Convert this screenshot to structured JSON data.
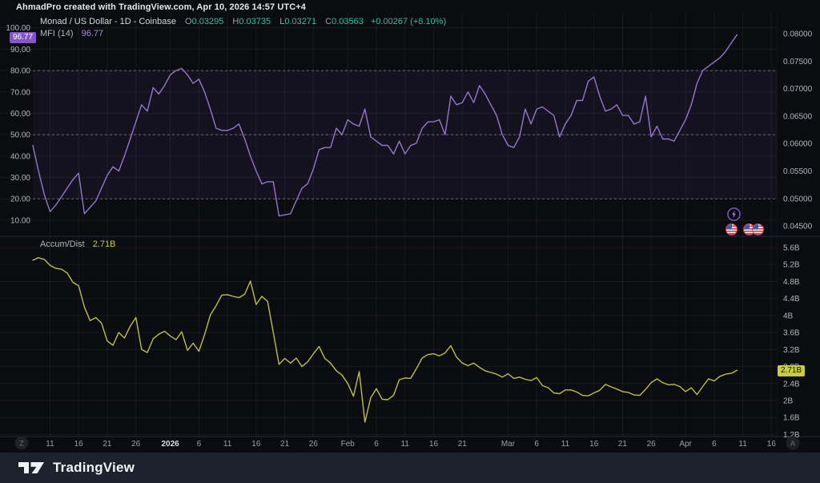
{
  "attribution": "AhmadPro created with TradingView.com, Apr 10, 2026 14:57 UTC+4",
  "header": {
    "symbol_title": "Monad / US Dollar - 1D - Coinbase",
    "ohlc": [
      {
        "k": "O",
        "v": "0.03295"
      },
      {
        "k": "H",
        "v": "0.03735"
      },
      {
        "k": "L",
        "v": "0.03271"
      },
      {
        "k": "C",
        "v": "0.03563"
      }
    ],
    "change": "+0.00267 (+8.10%)",
    "mfi_label": "MFI (14)",
    "mfi_value": "96.77",
    "accdist_label": "Accum/Dist",
    "accdist_value": "2.71B"
  },
  "badges": {
    "mfi": "96.77",
    "accdist": "2.71B"
  },
  "axes": {
    "mfi_left": [
      "100.00",
      "90.00",
      "80.00",
      "70.00",
      "60.00",
      "50.00",
      "40.00",
      "30.00",
      "20.00",
      "10.00"
    ],
    "price_right": [
      "0.08000",
      "0.07500",
      "0.07000",
      "0.06500",
      "0.06000",
      "0.05500",
      "0.05000",
      "0.04500"
    ],
    "accdist_right": [
      "5.6B",
      "5.2B",
      "4.8B",
      "4.4B",
      "4B",
      "3.6B",
      "3.2B",
      "2.8B",
      "2.4B",
      "2B",
      "1.6B",
      "1.2B"
    ],
    "time": [
      {
        "label": "11",
        "i": 3
      },
      {
        "label": "16",
        "i": 8
      },
      {
        "label": "21",
        "i": 13
      },
      {
        "label": "26",
        "i": 18
      },
      {
        "label": "2026",
        "i": 24,
        "bold": true
      },
      {
        "label": "6",
        "i": 29
      },
      {
        "label": "11",
        "i": 34
      },
      {
        "label": "16",
        "i": 39
      },
      {
        "label": "21",
        "i": 44
      },
      {
        "label": "26",
        "i": 49
      },
      {
        "label": "Feb",
        "i": 55
      },
      {
        "label": "6",
        "i": 60
      },
      {
        "label": "11",
        "i": 65
      },
      {
        "label": "16",
        "i": 70
      },
      {
        "label": "21",
        "i": 75
      },
      {
        "label": "Mar",
        "i": 83
      },
      {
        "label": "6",
        "i": 88
      },
      {
        "label": "11",
        "i": 93
      },
      {
        "label": "16",
        "i": 98
      },
      {
        "label": "21",
        "i": 103
      },
      {
        "label": "26",
        "i": 108
      },
      {
        "label": "Apr",
        "i": 114
      },
      {
        "label": "6",
        "i": 119
      },
      {
        "label": "11",
        "i": 124
      },
      {
        "label": "16",
        "i": 129
      }
    ],
    "time_left_button": "Z",
    "time_right_button": "A"
  },
  "chart_data": [
    {
      "type": "line",
      "title": "MFI (14)",
      "pane": "top",
      "symbol": "Monad / US Dollar",
      "interval": "1D",
      "exchange": "Coinbase",
      "x_start": "2025-12-08",
      "x_end": "2026-04-10",
      "ylim": [
        0,
        105
      ],
      "levels": {
        "overbought": 80,
        "middle": 50,
        "oversold": 20
      },
      "last_value": 96.77,
      "values": [
        45,
        33,
        22,
        14,
        17,
        21,
        25,
        29,
        32,
        13,
        16,
        19,
        25,
        31,
        35,
        33,
        40,
        48,
        56,
        64,
        61,
        72,
        69,
        73,
        78,
        80,
        81,
        78,
        74,
        76,
        70,
        62,
        53,
        52,
        52,
        53,
        55,
        48,
        40,
        33,
        27,
        28,
        28,
        12,
        12.5,
        13,
        19,
        25,
        27,
        34,
        43,
        44,
        44,
        53,
        50,
        57,
        55,
        54,
        62,
        49,
        47,
        45,
        45,
        41,
        47,
        41,
        45,
        46,
        53,
        56,
        56,
        57,
        50,
        68,
        64,
        65,
        70,
        65,
        73,
        69,
        64,
        59,
        50,
        45,
        44,
        49,
        62,
        55,
        62,
        63,
        61,
        59,
        49,
        55,
        59,
        66,
        66,
        75,
        77,
        68,
        61,
        62,
        64,
        59,
        59,
        55,
        56,
        68,
        49,
        54,
        48,
        48,
        47,
        52,
        57,
        64,
        74,
        80,
        82,
        84,
        86,
        89,
        93,
        96.77
      ]
    },
    {
      "type": "line",
      "title": "Accum/Dist",
      "pane": "bottom",
      "unit": "B",
      "x_start": "2025-12-08",
      "x_end": "2026-04-10",
      "ylim": [
        1.0,
        5.8
      ],
      "last_value": 2.71,
      "last_label": "2.71B",
      "values": [
        5.3,
        5.36,
        5.32,
        5.18,
        5.11,
        5.09,
        5.0,
        4.78,
        4.7,
        4.2,
        3.88,
        3.95,
        3.82,
        3.4,
        3.3,
        3.6,
        3.47,
        3.75,
        3.95,
        3.2,
        3.13,
        3.45,
        3.56,
        3.63,
        3.52,
        3.43,
        3.62,
        3.18,
        3.35,
        3.16,
        3.55,
        4.01,
        4.23,
        4.48,
        4.49,
        4.45,
        4.42,
        4.5,
        4.81,
        4.26,
        4.45,
        4.33,
        3.6,
        2.85,
        2.99,
        2.88,
        3.0,
        2.8,
        2.91,
        3.1,
        3.27,
        2.99,
        2.88,
        2.7,
        2.6,
        2.4,
        2.1,
        2.68,
        1.49,
        2.06,
        2.28,
        2.03,
        2.02,
        2.12,
        2.49,
        2.53,
        2.52,
        2.75,
        3.0,
        3.08,
        3.1,
        3.05,
        3.12,
        3.29,
        3.02,
        2.88,
        2.82,
        2.88,
        2.78,
        2.7,
        2.66,
        2.62,
        2.55,
        2.63,
        2.52,
        2.55,
        2.5,
        2.47,
        2.54,
        2.35,
        2.3,
        2.18,
        2.16,
        2.25,
        2.25,
        2.2,
        2.12,
        2.11,
        2.18,
        2.24,
        2.38,
        2.32,
        2.27,
        2.21,
        2.19,
        2.13,
        2.12,
        2.26,
        2.42,
        2.51,
        2.42,
        2.37,
        2.38,
        2.33,
        2.21,
        2.3,
        2.14,
        2.33,
        2.51,
        2.46,
        2.57,
        2.62,
        2.64,
        2.71
      ]
    }
  ],
  "colors": {
    "bg": "#0b0c10",
    "grid": "rgba(255,255,255,0.055)",
    "axis_text": "#b2b5be",
    "dim_text": "#9aa0ab",
    "bold_tick_text": "#dcdee3",
    "mfi_line": "#9575cd",
    "mfi_band": "rgba(126,87,194,0.09)",
    "level_line": "rgba(195,197,205,0.45)",
    "accdist_line": "#bdbf45",
    "separator": "#262a34",
    "button_bg": "#1f2127",
    "button_text": "#6d7079",
    "teal": "#2fbfa4",
    "mfi_badge": "#8455c9",
    "accdist_badge": "#c9cb43"
  },
  "footer": {
    "brand": "TradingView"
  }
}
